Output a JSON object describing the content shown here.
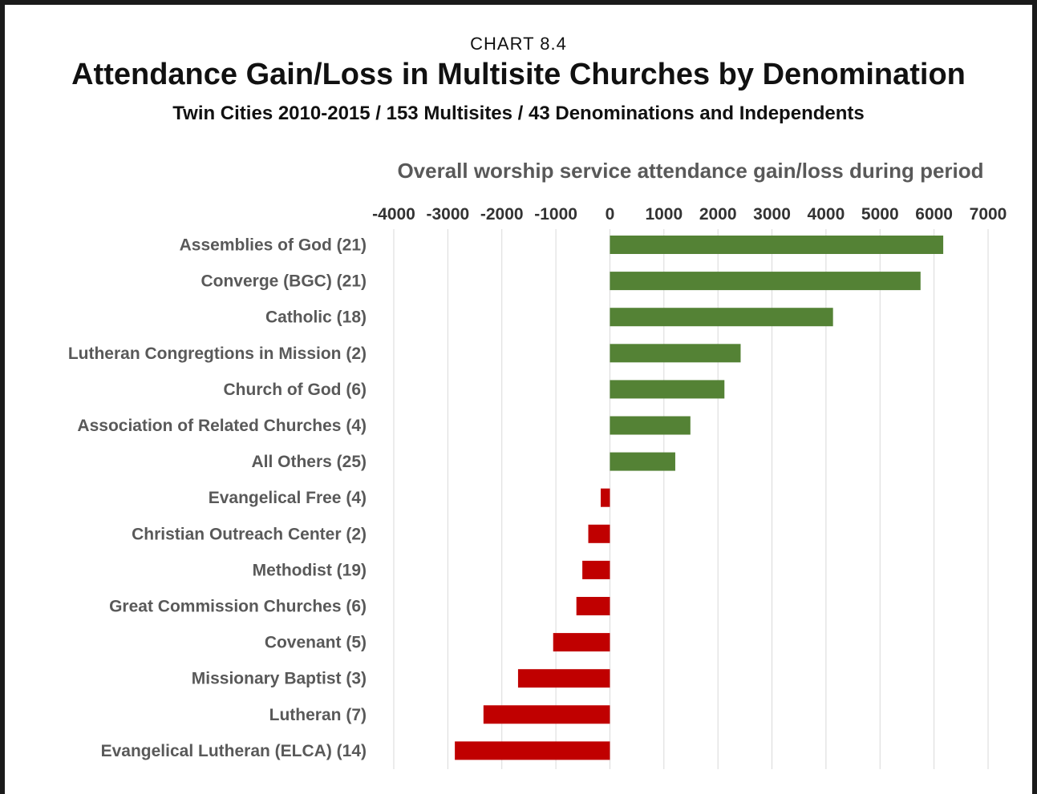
{
  "header": {
    "kicker": "CHART 8.4",
    "title": "Attendance Gain/Loss in Multisite Churches by Denomination",
    "subtitle": "Twin Cities 2010-2015 /  153 Multisites / 43 Denominations and Independents"
  },
  "colors": {
    "positive": "#548235",
    "negative": "#c00000",
    "grid": "#d9d9d9"
  },
  "chart_data": {
    "type": "bar",
    "orientation": "horizontal",
    "xlabel": "Overall worship service attendance gain/loss during period",
    "xlim": [
      -4000,
      7000
    ],
    "xticks": [
      "-4000",
      "-3000",
      "-2000",
      "-1000",
      "0",
      "1000",
      "2000",
      "3000",
      "4000",
      "5000",
      "6000",
      "7000"
    ],
    "grid": true,
    "categories": [
      "Assemblies of God (21)",
      "Converge (BGC) (21)",
      "Catholic (18)",
      "Lutheran Congregtions in Mission (2)",
      "Church of God (6)",
      "Association of Related Churches (4)",
      "All Others (25)",
      "Evangelical Free (4)",
      "Christian Outreach Center (2)",
      "Methodist (19)",
      "Great Commission Churches (6)",
      "Covenant (5)",
      "Missionary Baptist (3)",
      "Lutheran (7)",
      "Evangelical Lutheran (ELCA) (14)"
    ],
    "values": [
      6170,
      5750,
      4130,
      2420,
      2120,
      1490,
      1210,
      -170,
      -400,
      -510,
      -620,
      -1050,
      -1700,
      -2340,
      -2870
    ]
  }
}
